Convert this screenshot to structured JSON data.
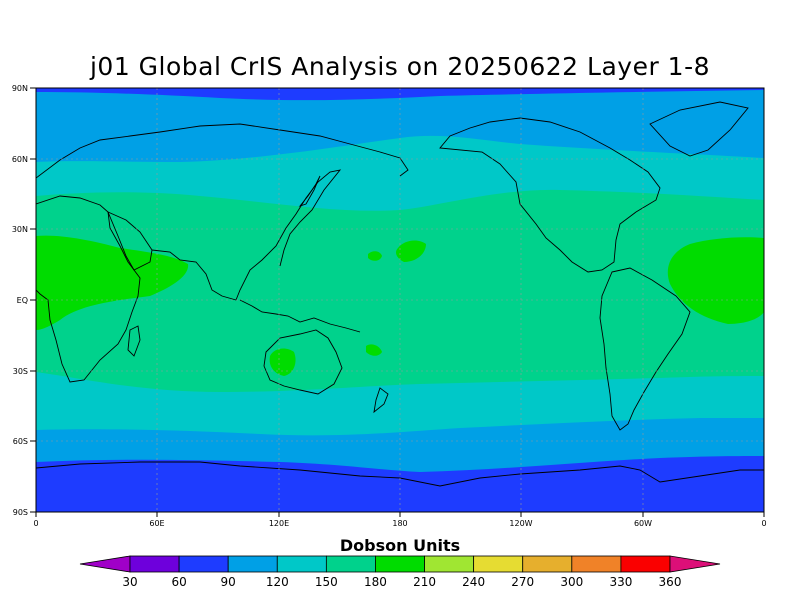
{
  "title": "j01 Global CrIS Analysis on 20250622 Layer 1-8",
  "lat_labels": [
    "90N",
    "60N",
    "30N",
    "EQ",
    "30S",
    "60S",
    "90S"
  ],
  "lon_labels": [
    "0",
    "60E",
    "120E",
    "180",
    "120W",
    "60W",
    "0"
  ],
  "colorbar": {
    "title": "Dobson Units",
    "levels": [
      "30",
      "60",
      "90",
      "120",
      "150",
      "180",
      "210",
      "240",
      "270",
      "300",
      "330",
      "360"
    ],
    "colors": [
      "#a000c8",
      "#6e00dc",
      "#1e3cff",
      "#00a0e6",
      "#00c8c8",
      "#00d28c",
      "#00dc00",
      "#a0e632",
      "#e6dc32",
      "#e6af2d",
      "#f08228",
      "#fa0000",
      "#dc0f78"
    ]
  },
  "map_fill_colors": {
    "polar_low": "#1e3cff",
    "mid_low": "#00a0e6",
    "transition": "#00c8c8",
    "tropics": "#00d28c",
    "peak": "#00dc00"
  }
}
